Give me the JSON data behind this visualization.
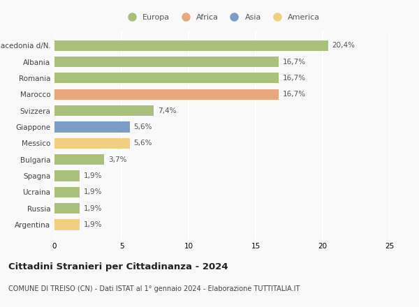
{
  "categories": [
    "Macedonia d/N.",
    "Albania",
    "Romania",
    "Marocco",
    "Svizzera",
    "Giappone",
    "Messico",
    "Bulgaria",
    "Spagna",
    "Ucraina",
    "Russia",
    "Argentina"
  ],
  "values": [
    20.4,
    16.7,
    16.7,
    16.7,
    7.4,
    5.6,
    5.6,
    3.7,
    1.9,
    1.9,
    1.9,
    1.9
  ],
  "labels": [
    "20,4%",
    "16,7%",
    "16,7%",
    "16,7%",
    "7,4%",
    "5,6%",
    "5,6%",
    "3,7%",
    "1,9%",
    "1,9%",
    "1,9%",
    "1,9%"
  ],
  "colors": [
    "#a8c07a",
    "#a8c07a",
    "#a8c07a",
    "#e8a87c",
    "#a8c07a",
    "#7b9dc7",
    "#f0d080",
    "#a8c07a",
    "#a8c07a",
    "#a8c07a",
    "#a8c07a",
    "#f0d080"
  ],
  "legend": [
    {
      "label": "Europa",
      "color": "#a8c07a"
    },
    {
      "label": "Africa",
      "color": "#e8a87c"
    },
    {
      "label": "Asia",
      "color": "#7b9dc7"
    },
    {
      "label": "America",
      "color": "#f0d080"
    }
  ],
  "xlim": [
    0,
    25
  ],
  "xticks": [
    0,
    5,
    10,
    15,
    20,
    25
  ],
  "title": "Cittadini Stranieri per Cittadinanza - 2024",
  "subtitle": "COMUNE DI TREISO (CN) - Dati ISTAT al 1° gennaio 2024 - Elaborazione TUTTITALIA.IT",
  "background_color": "#f9f9f9",
  "bar_height": 0.65,
  "grid_color": "#ffffff",
  "label_fontsize": 7.5,
  "title_fontsize": 9.5,
  "subtitle_fontsize": 7,
  "legend_fontsize": 8,
  "tick_fontsize": 7.5
}
